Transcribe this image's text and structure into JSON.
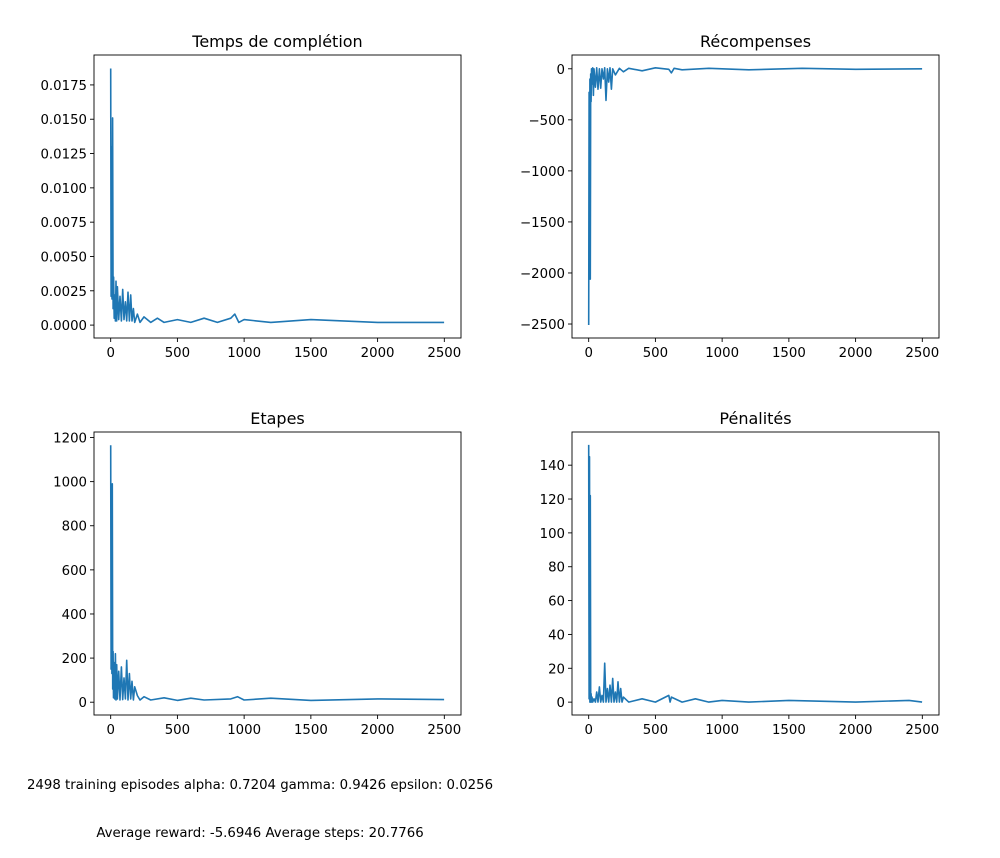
{
  "chart_data": [
    {
      "type": "line",
      "title": "Temps de complétion",
      "xlabel": "",
      "ylabel": "",
      "xlim": [
        -125,
        2625
      ],
      "ylim": [
        -0.00094,
        0.01968
      ],
      "xticks": [
        0,
        500,
        1000,
        1500,
        2000,
        2500
      ],
      "xtick_labels": [
        "0",
        "500",
        "1000",
        "1500",
        "2000",
        "2500"
      ],
      "yticks": [
        0.0,
        0.0025,
        0.005,
        0.0075,
        0.01,
        0.0125,
        0.015,
        0.0175
      ],
      "ytick_labels": [
        "0.0000",
        "0.0025",
        "0.0050",
        "0.0075",
        "0.0100",
        "0.0125",
        "0.0150",
        "0.0175"
      ],
      "grid": false,
      "color": "#1f77b4",
      "series": [
        {
          "x": [
            0,
            3,
            6,
            10,
            14,
            18,
            22,
            26,
            30,
            35,
            40,
            45,
            50,
            60,
            70,
            80,
            90,
            100,
            110,
            120,
            130,
            140,
            150,
            160,
            170,
            180,
            200,
            220,
            250,
            300,
            350,
            400,
            500,
            600,
            700,
            800,
            900,
            930,
            960,
            1000,
            1200,
            1500,
            2000,
            2498
          ],
          "y": [
            0.0187,
            0.0021,
            0.013,
            0.0019,
            0.0151,
            0.0012,
            0.0035,
            0.0005,
            0.0022,
            0.0003,
            0.0032,
            0.0003,
            0.0028,
            0.0004,
            0.0021,
            0.0003,
            0.0026,
            0.0004,
            0.0017,
            0.0003,
            0.0024,
            0.0003,
            0.0022,
            0.0003,
            0.0012,
            0.0002,
            0.0008,
            0.0002,
            0.0006,
            0.0002,
            0.0005,
            0.0002,
            0.0004,
            0.0002,
            0.0005,
            0.0002,
            0.0005,
            0.0008,
            0.0002,
            0.0004,
            0.0002,
            0.0004,
            0.0002,
            0.0002
          ]
        }
      ]
    },
    {
      "type": "line",
      "title": "Récompenses",
      "xlabel": "",
      "ylabel": "",
      "xlim": [
        -125,
        2625
      ],
      "ylim": [
        -2637,
        135
      ],
      "xticks": [
        0,
        500,
        1000,
        1500,
        2000,
        2500
      ],
      "xtick_labels": [
        "0",
        "500",
        "1000",
        "1500",
        "2000",
        "2500"
      ],
      "yticks": [
        -2500,
        -2000,
        -1500,
        -1000,
        -500,
        0
      ],
      "ytick_labels": [
        "−2500",
        "−2000",
        "−1500",
        "−1000",
        "−500",
        "0"
      ],
      "grid": false,
      "color": "#1f77b4",
      "series": [
        {
          "x": [
            0,
            3,
            6,
            9,
            12,
            15,
            18,
            21,
            25,
            30,
            35,
            40,
            50,
            60,
            70,
            80,
            90,
            100,
            110,
            120,
            130,
            140,
            150,
            160,
            170,
            180,
            200,
            230,
            260,
            300,
            400,
            500,
            600,
            620,
            640,
            700,
            900,
            1200,
            1600,
            2000,
            2498
          ],
          "y": [
            -2510,
            -230,
            -2060,
            -100,
            -2060,
            -50,
            -320,
            0,
            -150,
            10,
            -260,
            0,
            -180,
            10,
            -200,
            0,
            -190,
            0,
            -100,
            10,
            -310,
            0,
            -130,
            10,
            -200,
            0,
            -60,
            5,
            -30,
            5,
            -20,
            10,
            -5,
            -40,
            5,
            -10,
            5,
            -10,
            5,
            -5,
            0
          ]
        }
      ]
    },
    {
      "type": "line",
      "title": "Etapes",
      "xlabel": "",
      "ylabel": "",
      "xlim": [
        -125,
        2625
      ],
      "ylim": [
        -58,
        1225
      ],
      "xticks": [
        0,
        500,
        1000,
        1500,
        2000,
        2500
      ],
      "xtick_labels": [
        "0",
        "500",
        "1000",
        "1500",
        "2000",
        "2500"
      ],
      "yticks": [
        0,
        200,
        400,
        600,
        800,
        1000,
        1200
      ],
      "ytick_labels": [
        "0",
        "200",
        "400",
        "600",
        "800",
        "1000",
        "1200"
      ],
      "grid": false,
      "color": "#1f77b4",
      "series": [
        {
          "x": [
            0,
            3,
            6,
            9,
            12,
            15,
            18,
            21,
            25,
            30,
            35,
            40,
            45,
            50,
            60,
            70,
            80,
            90,
            100,
            110,
            120,
            130,
            140,
            150,
            160,
            170,
            180,
            200,
            220,
            250,
            300,
            400,
            500,
            600,
            700,
            900,
            950,
            1000,
            1200,
            1500,
            2000,
            2498
          ],
          "y": [
            1165,
            150,
            850,
            130,
            990,
            60,
            230,
            20,
            180,
            15,
            220,
            10,
            170,
            15,
            140,
            10,
            160,
            12,
            110,
            15,
            190,
            10,
            130,
            15,
            95,
            10,
            70,
            30,
            10,
            25,
            10,
            20,
            8,
            18,
            10,
            15,
            25,
            10,
            18,
            8,
            15,
            12
          ]
        }
      ]
    },
    {
      "type": "line",
      "title": "Pénalités",
      "xlabel": "",
      "ylabel": "",
      "xlim": [
        -125,
        2625
      ],
      "ylim": [
        -7.6,
        159.6
      ],
      "xticks": [
        0,
        500,
        1000,
        1500,
        2000,
        2500
      ],
      "xtick_labels": [
        "0",
        "500",
        "1000",
        "1500",
        "2000",
        "2500"
      ],
      "yticks": [
        0,
        20,
        40,
        60,
        80,
        100,
        120,
        140
      ],
      "ytick_labels": [
        "0",
        "20",
        "40",
        "60",
        "80",
        "100",
        "120",
        "140"
      ],
      "grid": false,
      "color": "#1f77b4",
      "series": [
        {
          "x": [
            0,
            3,
            6,
            9,
            12,
            15,
            18,
            21,
            25,
            30,
            40,
            50,
            60,
            70,
            80,
            90,
            100,
            110,
            120,
            130,
            140,
            150,
            160,
            170,
            180,
            190,
            200,
            210,
            220,
            230,
            240,
            250,
            260,
            300,
            400,
            500,
            600,
            610,
            620,
            700,
            800,
            900,
            1000,
            1200,
            1500,
            2000,
            2400,
            2498
          ],
          "y": [
            152,
            2,
            145,
            0,
            122,
            0,
            5,
            0,
            3,
            0,
            2,
            0,
            6,
            0,
            9,
            0,
            4,
            0,
            23,
            0,
            8,
            0,
            10,
            0,
            14,
            0,
            6,
            0,
            12,
            0,
            8,
            0,
            3,
            0,
            2,
            0,
            4,
            0,
            3,
            0,
            2,
            0,
            1,
            0,
            1,
            0,
            1,
            0
          ]
        }
      ]
    }
  ],
  "caption": {
    "line1": "2498 training episodes alpha: 0.7204 gamma: 0.9426 epsilon: 0.0256",
    "line2": "Average reward: -5.6946 Average steps: 20.7766"
  }
}
